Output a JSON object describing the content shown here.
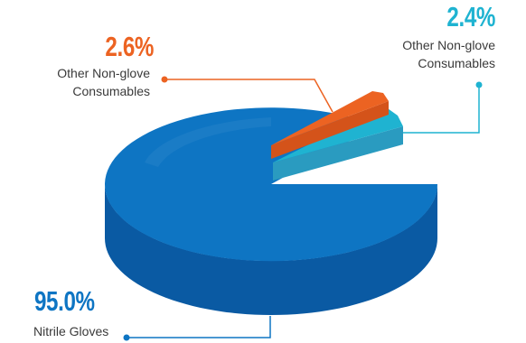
{
  "chart_data": {
    "type": "pie",
    "style": "3d",
    "title": "",
    "slices": [
      {
        "label": "Nitrile Gloves",
        "percent_text": "95.0%",
        "value": 95.0,
        "color": "#0e75c3",
        "side_color": "#0a5aa3"
      },
      {
        "label": "Other Non-glove Consumables",
        "percent_text": "2.6%",
        "value": 2.6,
        "color": "#ec6322",
        "side_color": "#d4531a"
      },
      {
        "label": "Other Non-glove Consumables",
        "percent_text": "2.4%",
        "value": 2.4,
        "color": "#1fb3d1",
        "side_color": "#2a9bc0"
      }
    ],
    "legend": "none"
  }
}
